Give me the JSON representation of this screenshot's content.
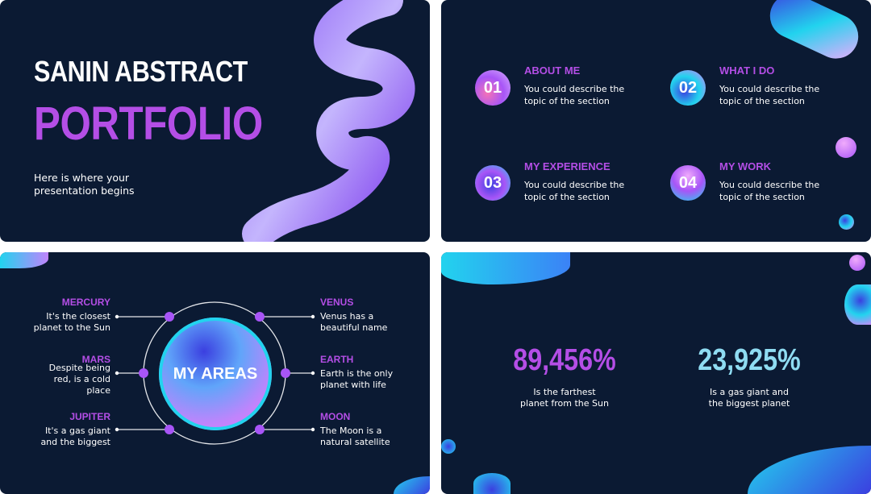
{
  "slide1": {
    "title_line1": "SANIN ABSTRACT",
    "title_line2": "PORTFOLIO",
    "subtitle": "Here is where your presentation begins"
  },
  "slide2": {
    "items": [
      {
        "number": "01",
        "title": "ABOUT ME",
        "desc": "You could describe the topic of the section"
      },
      {
        "number": "02",
        "title": "WHAT I DO",
        "desc": "You could describe the topic of the section"
      },
      {
        "number": "03",
        "title": "MY EXPERIENCE",
        "desc": "You could describe the topic of the section"
      },
      {
        "number": "04",
        "title": "MY WORK",
        "desc": "You could describe the topic of the section"
      }
    ]
  },
  "slide3": {
    "center": "MY AREAS",
    "planets": [
      {
        "name": "MERCURY",
        "desc": "It's the closest planet to the Sun"
      },
      {
        "name": "MARS",
        "desc": "Despite being red, is a cold place"
      },
      {
        "name": "JUPITER",
        "desc": "It's a gas giant and the biggest"
      },
      {
        "name": "VENUS",
        "desc": "Venus has a beautiful name"
      },
      {
        "name": "EARTH",
        "desc": "Earth is the only planet with life"
      },
      {
        "name": "MOON",
        "desc": "The Moon is a natural satellite"
      }
    ]
  },
  "slide4": {
    "stats": [
      {
        "value": "89,456%",
        "desc": "Is the farthest planet from the Sun",
        "color": "#b44ee6"
      },
      {
        "value": "23,925%",
        "desc": "Is a gas giant and the biggest planet",
        "color": "#8fdcf2"
      }
    ]
  },
  "colors": {
    "background": "#0b1a33",
    "accent_purple": "#b44ee6",
    "accent_cyan": "#22d3ee"
  }
}
